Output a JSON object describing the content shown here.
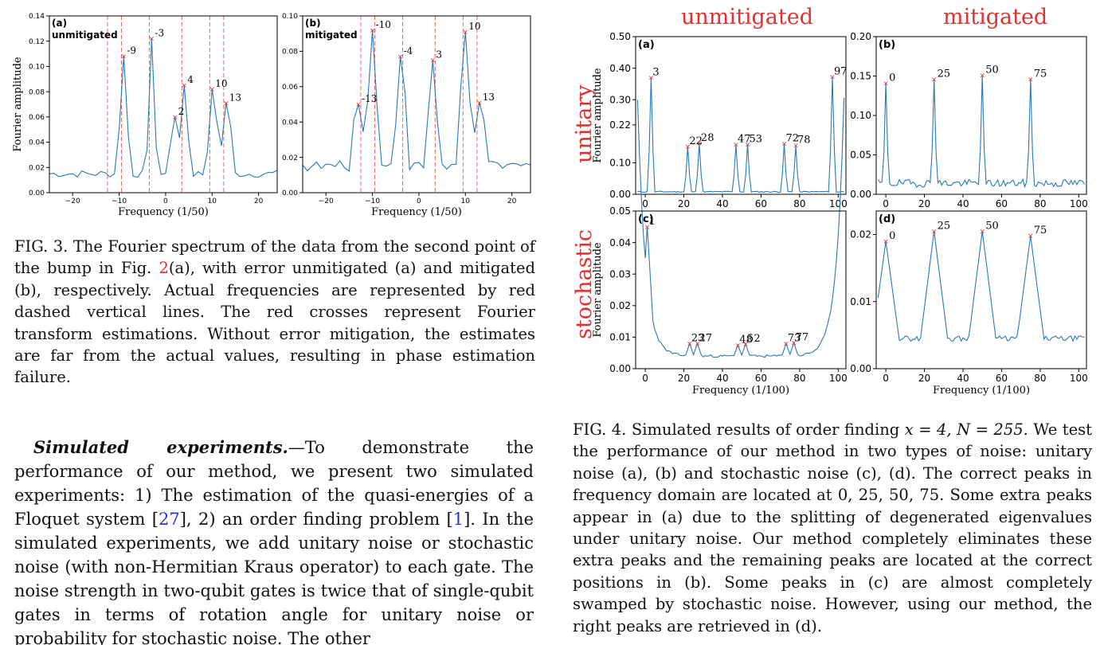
{
  "fig3": {
    "caption": {
      "label": "FIG. 3.",
      "text_1": " The Fourier spectrum of the data from the second point of the bump in Fig. ",
      "ref": "2",
      "text_2": "(a), with error unmitigated (a) and mitigated (b), respectively. Actual frequencies are represented by red dashed vertical lines. The red crosses represent Fourier transform estimations. Without error mitigation, the estimates are far from the actual values, resulting in phase estimation failure."
    }
  },
  "fig4": {
    "col_labels": [
      "unmitigated",
      "mitigated"
    ],
    "row_labels": [
      "unitary",
      "stochastic"
    ],
    "caption": {
      "label": "FIG. 4.",
      "text_1": " Simulated results of order finding ",
      "math": "x = 4, N = 255.",
      "text_2": " We test the performance of our method in two types of noise: unitary noise (a), (b) and stochastic noise (c), (d). The correct peaks in frequency domain are located at 0, 25, 50, 75. Some extra peaks appear in (a) due to the splitting of degenerated eigenvalues under unitary noise. Our method completely eliminates these extra peaks and the remaining peaks are located at the correct positions in (b). Some peaks in (c) are almost completely swamped by stochastic noise. However, using our method, the right peaks are retrieved in (d)."
    }
  },
  "body": {
    "heading": "Simulated experiments.",
    "dash": "—",
    "t1": "To demonstrate the performance of our method, we present two simulated experiments: 1) The estimation of the quasi-energies of a Floquet system [",
    "r1": "27",
    "t2": "], 2) an order finding problem [",
    "r2": "1",
    "t3": "]. In the simulated experiments, we add unitary noise or stochastic noise (with non-Hermitian Kraus operator) to each gate. The noise strength in two-qubit gates is twice that of single-qubit gates in terms of rotation angle for unitary noise or probability for stochastic noise. The other"
  },
  "chart_data": [
    {
      "id": "fig3a",
      "type": "line",
      "panel_label": "(a)",
      "title": "unmitigated",
      "xlabel": "Frequency (1/50)",
      "ylabel": "Fourier amplitude",
      "xlim": [
        -25,
        24
      ],
      "ylim": [
        0,
        0.14
      ],
      "xticks": [
        -20,
        -10,
        0,
        10,
        20
      ],
      "xtick_labels": [
        "−20",
        "−10",
        "0",
        "10",
        "20"
      ],
      "yticks": [
        0,
        0.02,
        0.04,
        0.06,
        0.08,
        0.1,
        0.12,
        0.14
      ],
      "ytick_labels": [
        "0.00",
        "0.02",
        "0.04",
        "0.06",
        "0.08",
        "0.10",
        "0.12",
        "0.14"
      ],
      "actual_frequencies": [
        -12.5,
        -9.5,
        -3.5,
        3.5,
        9.5,
        12.5
      ],
      "peaks": [
        {
          "x": -9,
          "y": 0.108,
          "label": "-9"
        },
        {
          "x": -3,
          "y": 0.122,
          "label": "-3"
        },
        {
          "x": 2,
          "y": 0.06,
          "label": "2"
        },
        {
          "x": 4,
          "y": 0.085,
          "label": "4"
        },
        {
          "x": 10,
          "y": 0.082,
          "label": "10"
        },
        {
          "x": 13,
          "y": 0.071,
          "label": "13"
        }
      ],
      "color": "#2a78b5",
      "marker_color": "#e03030"
    },
    {
      "id": "fig3b",
      "type": "line",
      "panel_label": "(b)",
      "title": "mitigated",
      "xlabel": "Frequency (1/50)",
      "ylabel": "",
      "xlim": [
        -25,
        24
      ],
      "ylim": [
        0,
        0.1
      ],
      "xticks": [
        -20,
        -10,
        0,
        10,
        20
      ],
      "xtick_labels": [
        "−20",
        "−10",
        "0",
        "10",
        "20"
      ],
      "yticks": [
        0,
        0.02,
        0.04,
        0.06,
        0.08,
        0.1
      ],
      "ytick_labels": [
        "0.00",
        "0.02",
        "0.04",
        "0.06",
        "0.08",
        "0.10"
      ],
      "actual_frequencies": [
        -12.5,
        -9.5,
        -3.5,
        3.5,
        9.5,
        12.5
      ],
      "peaks": [
        {
          "x": -13,
          "y": 0.05,
          "label": "-13"
        },
        {
          "x": -10,
          "y": 0.092,
          "label": "-10"
        },
        {
          "x": -4,
          "y": 0.077,
          "label": "-4"
        },
        {
          "x": 3,
          "y": 0.075,
          "label": "3"
        },
        {
          "x": 10,
          "y": 0.091,
          "label": "10"
        },
        {
          "x": 13,
          "y": 0.051,
          "label": "13"
        }
      ],
      "color": "#2a78b5",
      "marker_color": "#e03030"
    },
    {
      "id": "fig4a",
      "type": "line",
      "panel_label": "(a)",
      "xlabel": "",
      "ylabel": "Fourier amplitude",
      "xlim": [
        -5,
        104
      ],
      "ylim": [
        0,
        0.5
      ],
      "xticks": [
        0,
        20,
        40,
        60,
        80,
        100
      ],
      "xtick_labels": [
        "0",
        "20",
        "40",
        "60",
        "80",
        "100"
      ],
      "yticks": [
        0,
        0.1,
        0.22,
        0.3,
        0.4,
        0.5
      ],
      "ytick_labels": [
        "0.00",
        "0.10",
        "0.22",
        "0.30",
        "0.40",
        "0.50"
      ],
      "peaks": [
        {
          "x": 3,
          "y": 0.37,
          "label": "3"
        },
        {
          "x": 22,
          "y": 0.152,
          "label": "22"
        },
        {
          "x": 28,
          "y": 0.162,
          "label": "28"
        },
        {
          "x": 47,
          "y": 0.158,
          "label": "47"
        },
        {
          "x": 53,
          "y": 0.158,
          "label": "53"
        },
        {
          "x": 72,
          "y": 0.16,
          "label": "72"
        },
        {
          "x": 78,
          "y": 0.155,
          "label": "78"
        },
        {
          "x": 97,
          "y": 0.372,
          "label": "97"
        }
      ],
      "color": "#2a78b5",
      "marker_color": "#e03030"
    },
    {
      "id": "fig4b",
      "type": "line",
      "panel_label": "(b)",
      "xlabel": "",
      "ylabel": "",
      "xlim": [
        -5,
        104
      ],
      "ylim": [
        0,
        0.2
      ],
      "xticks": [
        0,
        20,
        40,
        60,
        80,
        100
      ],
      "xtick_labels": [
        "0",
        "20",
        "40",
        "60",
        "80",
        "100"
      ],
      "yticks": [
        0,
        0.05,
        0.1,
        0.15,
        0.2
      ],
      "ytick_labels": [
        "0.00",
        "0.05",
        "0.10",
        "0.15",
        "0.20"
      ],
      "peaks": [
        {
          "x": 0,
          "y": 0.141,
          "label": "0"
        },
        {
          "x": 25,
          "y": 0.146,
          "label": "25"
        },
        {
          "x": 50,
          "y": 0.151,
          "label": "50"
        },
        {
          "x": 75,
          "y": 0.146,
          "label": "75"
        }
      ],
      "color": "#2a78b5",
      "marker_color": "#e03030"
    },
    {
      "id": "fig4c",
      "type": "line",
      "panel_label": "(c)",
      "xlabel": "Frequency (1/100)",
      "ylabel": "Fourier amplitude",
      "xlim": [
        -5,
        104
      ],
      "ylim": [
        0,
        0.05
      ],
      "xticks": [
        0,
        20,
        40,
        60,
        80,
        100
      ],
      "xtick_labels": [
        "0",
        "20",
        "40",
        "60",
        "80",
        "100"
      ],
      "yticks": [
        0,
        0.01,
        0.02,
        0.03,
        0.04,
        0.05
      ],
      "ytick_labels": [
        "0.00",
        "0.01",
        "0.02",
        "0.03",
        "0.04",
        "0.05"
      ],
      "peaks": [
        {
          "x": 1,
          "y": 0.045,
          "label": "1"
        },
        {
          "x": 23,
          "y": 0.008,
          "label": "23"
        },
        {
          "x": 27,
          "y": 0.008,
          "label": "27"
        },
        {
          "x": 48,
          "y": 0.0075,
          "label": "48"
        },
        {
          "x": 52,
          "y": 0.0078,
          "label": "52"
        },
        {
          "x": 73,
          "y": 0.008,
          "label": "73"
        },
        {
          "x": 77,
          "y": 0.0082,
          "label": "77"
        }
      ],
      "color": "#2a78b5",
      "marker_color": "#e03030"
    },
    {
      "id": "fig4d",
      "type": "line",
      "panel_label": "(d)",
      "xlabel": "Frequency (1/100)",
      "ylabel": "",
      "xlim": [
        -5,
        104
      ],
      "ylim": [
        0,
        0.0235
      ],
      "xticks": [
        0,
        20,
        40,
        60,
        80,
        100
      ],
      "xtick_labels": [
        "0",
        "20",
        "40",
        "60",
        "80",
        "100"
      ],
      "yticks": [
        0,
        0.01,
        0.02
      ],
      "ytick_labels": [
        "0.00",
        "0.01",
        "0.02"
      ],
      "peaks": [
        {
          "x": 0,
          "y": 0.019,
          "label": "0"
        },
        {
          "x": 25,
          "y": 0.0205,
          "label": "25"
        },
        {
          "x": 50,
          "y": 0.0205,
          "label": "50"
        },
        {
          "x": 75,
          "y": 0.0198,
          "label": "75"
        }
      ],
      "color": "#2a78b5",
      "marker_color": "#e03030"
    }
  ]
}
